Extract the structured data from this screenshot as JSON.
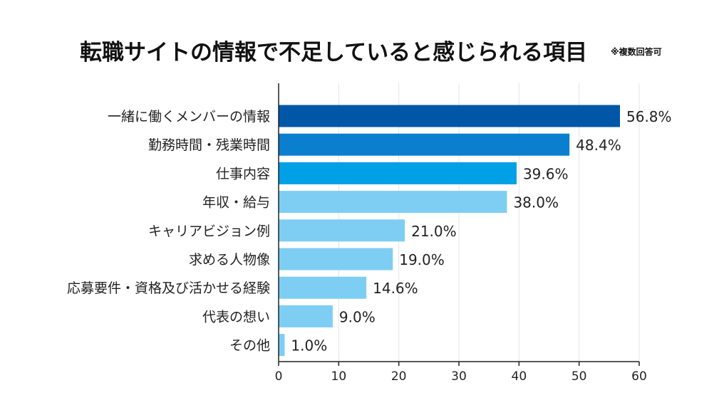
{
  "header": {
    "title": "転職サイトの情報で不足していると感じられる項目",
    "note": "※複数回答可"
  },
  "chart_data": {
    "type": "bar",
    "orientation": "horizontal",
    "title": "転職サイトの情報で不足していると感じられる項目",
    "note": "※複数回答可",
    "categories": [
      "一緒に働くメンバーの情報",
      "勤務時間・残業時間",
      "仕事内容",
      "年収・給与",
      "キャリアビジョン例",
      "求める人物像",
      "応募要件・資格及び活かせる経験",
      "代表の想い",
      "その他"
    ],
    "values": [
      56.8,
      48.4,
      39.6,
      38.0,
      21.0,
      19.0,
      14.6,
      9.0,
      1.0
    ],
    "value_labels": [
      "56.8%",
      "48.4%",
      "39.6%",
      "38.0%",
      "21.0%",
      "19.0%",
      "14.6%",
      "9.0%",
      "1.0%"
    ],
    "bar_colors": [
      "#0057a8",
      "#0a7fd0",
      "#00a0e6",
      "#7ecef3",
      "#7ecef3",
      "#7ecef3",
      "#7ecef3",
      "#7ecef3",
      "#7ecef3"
    ],
    "xlim": [
      0,
      60
    ],
    "xticks": [
      "0",
      "10",
      "20",
      "30",
      "40",
      "50",
      "60"
    ],
    "xlabel": "",
    "ylabel": "",
    "grid": true,
    "legend": "none"
  }
}
